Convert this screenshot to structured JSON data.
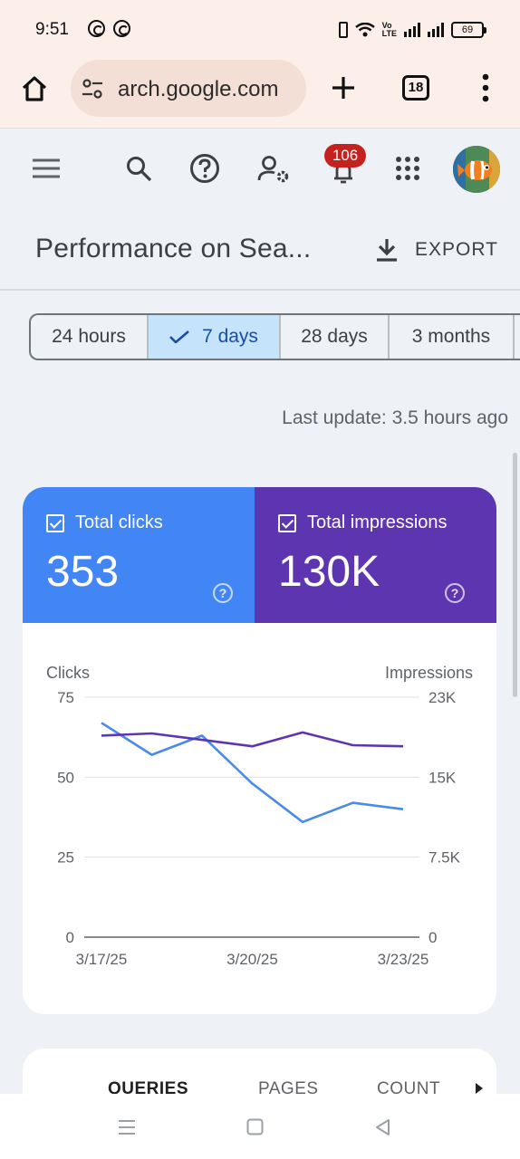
{
  "status_bar": {
    "time": "9:51",
    "battery": "69",
    "network": "Vo\nLTE"
  },
  "browser": {
    "url": "arch.google.com",
    "tab_count": "18"
  },
  "toolbar": {
    "notification_count": "106"
  },
  "header": {
    "title": "Performance on Sea...",
    "export_label": "EXPORT"
  },
  "date_range": {
    "options": [
      "24 hours",
      "7 days",
      "28 days",
      "3 months"
    ],
    "selected": "7 days"
  },
  "last_update": "Last update: 3.5 hours ago",
  "metrics": {
    "clicks": {
      "label": "Total clicks",
      "value": "353",
      "color": "#4285f4"
    },
    "impressions": {
      "label": "Total impressions",
      "value": "130K",
      "color": "#5e35b1"
    }
  },
  "chart_data": {
    "type": "line",
    "x": [
      "3/17/25",
      "3/18/25",
      "3/19/25",
      "3/20/25",
      "3/21/25",
      "3/22/25",
      "3/23/25"
    ],
    "x_tick_labels": [
      "3/17/25",
      "3/20/25",
      "3/23/25"
    ],
    "left_axis": {
      "label": "Clicks",
      "ticks": [
        "75",
        "50",
        "25",
        "0"
      ],
      "range": [
        0,
        75
      ]
    },
    "right_axis": {
      "label": "Impressions",
      "ticks": [
        "23K",
        "15K",
        "7.5K",
        "0"
      ],
      "range": [
        0,
        22500
      ]
    },
    "series": [
      {
        "name": "Clicks",
        "axis": "left",
        "color": "#4a8ae8",
        "values": [
          67,
          57,
          63,
          48,
          36,
          42,
          40
        ]
      },
      {
        "name": "Impressions",
        "axis": "right",
        "color": "#5e35b1",
        "values": [
          18900,
          19100,
          18500,
          17900,
          19200,
          18000,
          17900
        ]
      }
    ],
    "grid": true
  },
  "table_tabs": [
    "QUERIES",
    "PAGES",
    "COUNT"
  ]
}
